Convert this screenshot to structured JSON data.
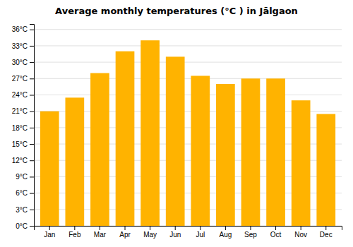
{
  "chart_data": {
    "type": "bar",
    "title": "Average monthly temperatures (°C ) in Jālgaon",
    "categories": [
      "Jan",
      "Feb",
      "Mar",
      "Apr",
      "May",
      "Jun",
      "Jul",
      "Aug",
      "Sep",
      "Oct",
      "Nov",
      "Dec"
    ],
    "values": [
      21.0,
      23.5,
      28.0,
      32.0,
      34.0,
      31.0,
      27.5,
      26.0,
      27.0,
      27.0,
      23.0,
      20.5
    ],
    "color": "#FFB300",
    "ylim": [
      0,
      37
    ],
    "yticks": [
      {
        "value": 0,
        "label": "0°C"
      },
      {
        "value": 3,
        "label": "3°C"
      },
      {
        "value": 6,
        "label": "6°C"
      },
      {
        "value": 9,
        "label": "9°C"
      },
      {
        "value": 12,
        "label": "12°C"
      },
      {
        "value": 15,
        "label": "15°C"
      },
      {
        "value": 18,
        "label": "18°C"
      },
      {
        "value": 21,
        "label": "21°C"
      },
      {
        "value": 24,
        "label": "24°C"
      },
      {
        "value": 27,
        "label": "27°C"
      },
      {
        "value": 30,
        "label": "30°C"
      },
      {
        "value": 33,
        "label": "33°C"
      },
      {
        "value": 36,
        "label": "36°C"
      }
    ],
    "grid": true
  }
}
